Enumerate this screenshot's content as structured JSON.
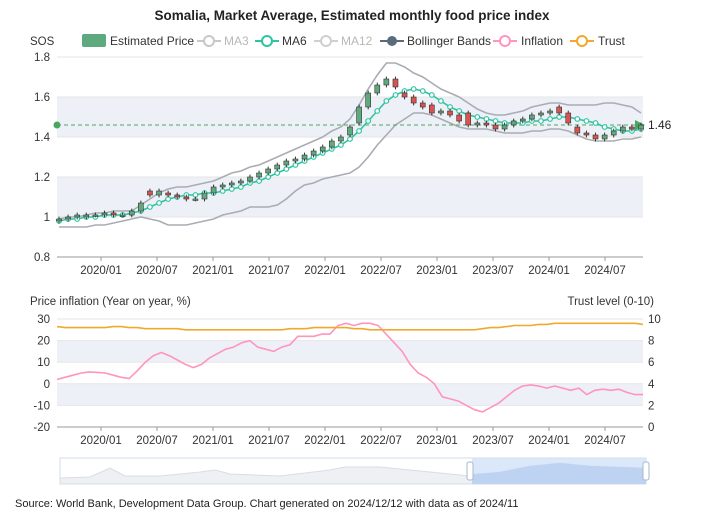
{
  "title": "Somalia, Market Average, Estimated monthly food price index",
  "source": "Source: World Bank, Development Data Group. Chart generated on 2024/12/12 with data as of 2024/11",
  "colors": {
    "bull": "#5fa97e",
    "bear": "#d9534f",
    "ma3": "#c8c8c8",
    "ma6": "#2ec4a0",
    "ma12": "#cfcfcf",
    "bollinger": "#a9adb3",
    "inflation": "#ff94bd",
    "trust": "#f0a92c",
    "band": "#eef0f8",
    "grid": "#e6e6e6"
  },
  "chart_data": [
    {
      "type": "candlestick",
      "title": "Somalia, Market Average, Estimated monthly food price index",
      "ylabel": "SOS",
      "ylim": [
        0.8,
        1.8
      ],
      "yticks": [
        "0.8",
        "1",
        "1.2",
        "1.4",
        "1.6",
        "1.8"
      ],
      "xlabels": [
        "2020/01",
        "2020/07",
        "2021/01",
        "2021/07",
        "2022/01",
        "2022/07",
        "2023/01",
        "2023/07",
        "2024/01",
        "2024/07"
      ],
      "legend": [
        {
          "name": "Estimated Price",
          "icon": "rect",
          "color": "#5fa97e",
          "dim": false
        },
        {
          "name": "MA3",
          "icon": "circle",
          "color": "#c8c8c8",
          "dim": true
        },
        {
          "name": "MA6",
          "icon": "circle",
          "color": "#2ec4a0",
          "dim": false
        },
        {
          "name": "MA12",
          "icon": "circle",
          "color": "#cfcfcf",
          "dim": true
        },
        {
          "name": "Bollinger Bands",
          "icon": "dot",
          "color": "#5a6b7b",
          "dim": false
        },
        {
          "name": "Inflation",
          "icon": "circle",
          "color": "#ff94bd",
          "dim": false
        },
        {
          "name": "Trust",
          "icon": "circle",
          "color": "#f0a92c",
          "dim": false
        }
      ],
      "last_value_label": "1.46",
      "reference_line": 1.46,
      "x_months": [
        "2019/07",
        "2019/08",
        "2019/09",
        "2019/10",
        "2019/11",
        "2019/12",
        "2020/01",
        "2020/02",
        "2020/03",
        "2020/04",
        "2020/05",
        "2020/06",
        "2020/07",
        "2020/08",
        "2020/09",
        "2020/10",
        "2020/11",
        "2020/12",
        "2021/01",
        "2021/02",
        "2021/03",
        "2021/04",
        "2021/05",
        "2021/06",
        "2021/07",
        "2021/08",
        "2021/09",
        "2021/10",
        "2021/11",
        "2021/12",
        "2022/01",
        "2022/02",
        "2022/03",
        "2022/04",
        "2022/05",
        "2022/06",
        "2022/07",
        "2022/08",
        "2022/09",
        "2022/10",
        "2022/11",
        "2022/12",
        "2023/01",
        "2023/02",
        "2023/03",
        "2023/04",
        "2023/05",
        "2023/06",
        "2023/07",
        "2023/08",
        "2023/09",
        "2023/10",
        "2023/11",
        "2023/12",
        "2024/01",
        "2024/02",
        "2024/03",
        "2024/04",
        "2024/05",
        "2024/06",
        "2024/07",
        "2024/08",
        "2024/09",
        "2024/10",
        "2024/11"
      ],
      "close": [
        0.99,
        1.0,
        1.01,
        1.01,
        1.01,
        1.02,
        1.01,
        1.01,
        1.03,
        1.07,
        1.11,
        1.13,
        1.11,
        1.1,
        1.09,
        1.09,
        1.12,
        1.15,
        1.16,
        1.17,
        1.18,
        1.2,
        1.22,
        1.24,
        1.26,
        1.28,
        1.29,
        1.31,
        1.33,
        1.35,
        1.38,
        1.4,
        1.45,
        1.55,
        1.62,
        1.66,
        1.69,
        1.65,
        1.6,
        1.57,
        1.55,
        1.52,
        1.53,
        1.51,
        1.48,
        1.46,
        1.47,
        1.46,
        1.44,
        1.46,
        1.48,
        1.49,
        1.51,
        1.52,
        1.53,
        1.52,
        1.47,
        1.42,
        1.41,
        1.39,
        1.41,
        1.43,
        1.45,
        1.44,
        1.46
      ],
      "open": [
        0.98,
        0.99,
        1.0,
        1.0,
        1.01,
        1.01,
        1.02,
        1.01,
        1.01,
        1.03,
        1.13,
        1.11,
        1.12,
        1.11,
        1.1,
        1.09,
        1.09,
        1.12,
        1.15,
        1.16,
        1.17,
        1.18,
        1.2,
        1.22,
        1.24,
        1.26,
        1.28,
        1.29,
        1.31,
        1.33,
        1.35,
        1.38,
        1.41,
        1.47,
        1.55,
        1.62,
        1.66,
        1.69,
        1.62,
        1.6,
        1.57,
        1.56,
        1.52,
        1.53,
        1.51,
        1.52,
        1.46,
        1.47,
        1.46,
        1.44,
        1.46,
        1.48,
        1.49,
        1.51,
        1.52,
        1.55,
        1.52,
        1.45,
        1.42,
        1.41,
        1.39,
        1.41,
        1.43,
        1.45,
        1.44
      ],
      "ma6": [
        0.98,
        0.99,
        0.99,
        1.0,
        1.0,
        1.01,
        1.01,
        1.01,
        1.02,
        1.03,
        1.05,
        1.07,
        1.09,
        1.1,
        1.11,
        1.11,
        1.12,
        1.12,
        1.13,
        1.14,
        1.15,
        1.17,
        1.18,
        1.2,
        1.22,
        1.24,
        1.26,
        1.28,
        1.3,
        1.32,
        1.34,
        1.36,
        1.39,
        1.43,
        1.48,
        1.53,
        1.58,
        1.61,
        1.63,
        1.64,
        1.63,
        1.61,
        1.58,
        1.55,
        1.53,
        1.51,
        1.5,
        1.49,
        1.48,
        1.47,
        1.47,
        1.47,
        1.48,
        1.48,
        1.49,
        1.5,
        1.5,
        1.49,
        1.48,
        1.47,
        1.45,
        1.44,
        1.43,
        1.43,
        1.44
      ],
      "bollinger_upper": [
        0.99,
        1.0,
        1.0,
        1.01,
        1.02,
        1.02,
        1.03,
        1.03,
        1.03,
        1.06,
        1.09,
        1.12,
        1.14,
        1.15,
        1.15,
        1.16,
        1.17,
        1.18,
        1.2,
        1.22,
        1.23,
        1.25,
        1.26,
        1.28,
        1.3,
        1.32,
        1.34,
        1.36,
        1.38,
        1.4,
        1.43,
        1.45,
        1.49,
        1.56,
        1.64,
        1.71,
        1.77,
        1.77,
        1.75,
        1.72,
        1.7,
        1.67,
        1.64,
        1.62,
        1.6,
        1.57,
        1.54,
        1.52,
        1.51,
        1.51,
        1.52,
        1.53,
        1.55,
        1.56,
        1.57,
        1.57,
        1.56,
        1.56,
        1.56,
        1.56,
        1.57,
        1.57,
        1.56,
        1.55,
        1.52
      ],
      "bollinger_lower": [
        0.95,
        0.95,
        0.95,
        0.95,
        0.96,
        0.96,
        0.97,
        0.98,
        0.99,
        1.0,
        0.99,
        0.98,
        0.96,
        0.96,
        0.96,
        0.97,
        0.98,
        0.99,
        1.01,
        1.02,
        1.03,
        1.05,
        1.05,
        1.05,
        1.06,
        1.09,
        1.13,
        1.16,
        1.17,
        1.19,
        1.2,
        1.21,
        1.22,
        1.25,
        1.3,
        1.36,
        1.41,
        1.46,
        1.49,
        1.52,
        1.52,
        1.51,
        1.49,
        1.47,
        1.45,
        1.44,
        1.44,
        1.44,
        1.43,
        1.42,
        1.42,
        1.42,
        1.43,
        1.43,
        1.44,
        1.44,
        1.43,
        1.41,
        1.39,
        1.38,
        1.38,
        1.38,
        1.39,
        1.39,
        1.4
      ]
    },
    {
      "type": "line",
      "ylabel_left": "Price inflation (Year on year, %)",
      "ylabel_right": "Trust level (0-10)",
      "ylim_left": [
        -20,
        30
      ],
      "ylim_right": [
        0,
        10
      ],
      "yticks_left": [
        "30",
        "20",
        "10",
        "0",
        "-10",
        "-20"
      ],
      "yticks_right": [
        "10",
        "8",
        "6",
        "4",
        "2",
        "0"
      ],
      "xlabels": [
        "2020/01",
        "2020/07",
        "2021/01",
        "2021/07",
        "2022/01",
        "2022/07",
        "2023/01",
        "2023/07",
        "2024/01",
        "2024/07"
      ],
      "series": [
        {
          "name": "Inflation",
          "axis": "left",
          "values": [
            2,
            3,
            4,
            5,
            5.5,
            5.3,
            5,
            4,
            3,
            2.5,
            6,
            10,
            13,
            14.5,
            13,
            11,
            9,
            7.5,
            9,
            12,
            14,
            16,
            17,
            19,
            20,
            17,
            16,
            15,
            17,
            18,
            22,
            22,
            22,
            23,
            23,
            27,
            28,
            27,
            28,
            28,
            27,
            23,
            19,
            15,
            9,
            5,
            3,
            0,
            -6,
            -7,
            -8,
            -10,
            -12,
            -13,
            -11,
            -9,
            -6,
            -3,
            -1,
            -0.5,
            -1,
            -2,
            -1,
            -2,
            -3,
            -2,
            -5,
            -3,
            -2.5,
            -3,
            -2.5,
            -4,
            -5,
            -5
          ]
        },
        {
          "name": "Trust",
          "axis": "right",
          "values": [
            9.3,
            9.2,
            9.2,
            9.2,
            9.2,
            9.2,
            9.2,
            9.3,
            9.3,
            9.2,
            9.2,
            9.1,
            9.1,
            9.1,
            9.1,
            9.1,
            9.0,
            9.0,
            9.0,
            9.0,
            9.0,
            9.0,
            9.0,
            9.0,
            9.0,
            9.0,
            9.0,
            9.0,
            9.0,
            9.1,
            9.1,
            9.1,
            9.2,
            9.2,
            9.2,
            9.2,
            9.2,
            9.1,
            9.1,
            9.0,
            9.0,
            9.0,
            9.0,
            9.0,
            9.0,
            9.0,
            9.0,
            9.0,
            9.0,
            9.0,
            9.0,
            9.0,
            9.0,
            9.1,
            9.2,
            9.2,
            9.3,
            9.4,
            9.4,
            9.4,
            9.5,
            9.5,
            9.6,
            9.6,
            9.6,
            9.6,
            9.6,
            9.6,
            9.6,
            9.6,
            9.6,
            9.6,
            9.6,
            9.5
          ]
        }
      ]
    }
  ]
}
